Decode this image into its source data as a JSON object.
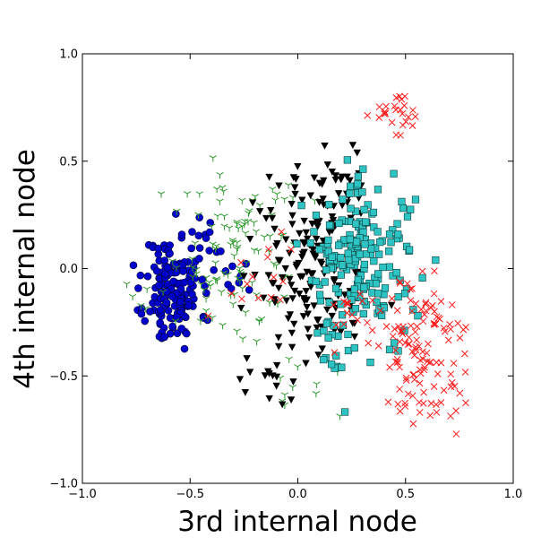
{
  "chart_data": {
    "type": "scatter",
    "title": "",
    "xlabel": "3rd internal node",
    "ylabel": "4th internal node",
    "xlim": [
      -1.0,
      1.0
    ],
    "ylim": [
      -1.0,
      1.0
    ],
    "xticks": [
      "−1.0",
      "−0.5",
      "0.0",
      "0.5",
      "1.0"
    ],
    "yticks": [
      "−1.0",
      "−0.5",
      "0.0",
      "0.5",
      "1.0"
    ],
    "xtick_values": [
      -1.0,
      -0.5,
      0.0,
      0.5,
      1.0
    ],
    "ytick_values": [
      -1.0,
      -0.5,
      0.0,
      0.5,
      1.0
    ],
    "grid": false,
    "legend": "none",
    "series": [
      {
        "marker": "circle",
        "color": "#0000cc",
        "edge": "#000033",
        "clusters": [
          {
            "cx": -0.58,
            "cy": -0.1,
            "sx": 0.065,
            "sy": 0.13,
            "n": 160,
            "seed": 11
          },
          {
            "cx": -0.4,
            "cy": 0.1,
            "sx": 0.05,
            "sy": 0.07,
            "n": 12,
            "seed": 12
          },
          {
            "cx": -0.27,
            "cy": -0.05,
            "sx": 0.04,
            "sy": 0.08,
            "n": 8,
            "seed": 13
          }
        ]
      },
      {
        "marker": "tri_down_thin",
        "color": "#2e9a2e",
        "clusters": [
          {
            "cx": -0.3,
            "cy": 0.0,
            "sx": 0.16,
            "sy": 0.2,
            "n": 110,
            "seed": 21
          },
          {
            "cx": -0.1,
            "cy": 0.3,
            "sx": 0.08,
            "sy": 0.1,
            "n": 10,
            "seed": 22
          },
          {
            "cx": 0.05,
            "cy": -0.55,
            "sx": 0.1,
            "sy": 0.08,
            "n": 10,
            "seed": 23
          }
        ]
      },
      {
        "marker": "triangle_down",
        "color": "#000000",
        "clusters": [
          {
            "cx": 0.05,
            "cy": 0.0,
            "sx": 0.14,
            "sy": 0.22,
            "n": 150,
            "seed": 31
          },
          {
            "cx": 0.18,
            "cy": 0.38,
            "sx": 0.07,
            "sy": 0.1,
            "n": 25,
            "seed": 32
          },
          {
            "cx": -0.12,
            "cy": -0.55,
            "sx": 0.08,
            "sy": 0.07,
            "n": 15,
            "seed": 33
          }
        ]
      },
      {
        "marker": "square",
        "color": "#2ec4c4",
        "edge": "#0b3d3d",
        "clusters": [
          {
            "cx": 0.3,
            "cy": 0.05,
            "sx": 0.13,
            "sy": 0.17,
            "n": 190,
            "seed": 41
          },
          {
            "cx": 0.15,
            "cy": -0.4,
            "sx": 0.06,
            "sy": 0.1,
            "n": 15,
            "seed": 42
          }
        ]
      },
      {
        "marker": "x",
        "color": "#ff1a1a",
        "clusters": [
          {
            "cx": 0.58,
            "cy": -0.4,
            "sx": 0.1,
            "sy": 0.18,
            "n": 120,
            "seed": 51
          },
          {
            "cx": 0.45,
            "cy": 0.72,
            "sx": 0.05,
            "sy": 0.05,
            "n": 25,
            "seed": 52
          },
          {
            "cx": 0.3,
            "cy": -0.2,
            "sx": 0.1,
            "sy": 0.08,
            "n": 20,
            "seed": 53
          },
          {
            "cx": -0.2,
            "cy": 0.0,
            "sx": 0.12,
            "sy": 0.12,
            "n": 15,
            "seed": 54
          }
        ]
      }
    ]
  }
}
